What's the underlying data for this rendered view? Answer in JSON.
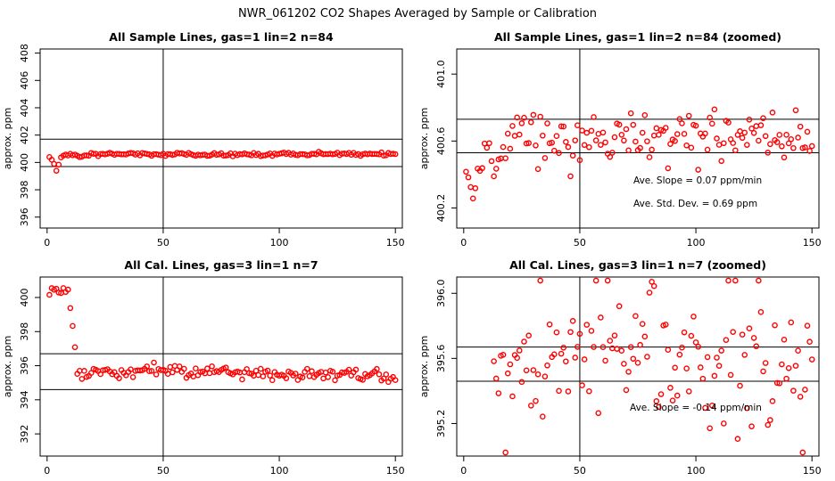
{
  "title": "NWR_061202  CO2 Shapes Averaged by Sample or Calibration",
  "colors": {
    "point": "#ff0000",
    "axis": "#000000"
  },
  "chart_data": [
    {
      "type": "scatter",
      "title": "All Sample Lines, gas=1 lin=2 n=84",
      "ylabel": "approx. ppm",
      "xlim": [
        -3,
        153
      ],
      "ylim": [
        395.2,
        408.3
      ],
      "xticks": [
        "0",
        "50",
        "100",
        "150"
      ],
      "yticks": [
        "396",
        "398",
        "400",
        "402",
        "404",
        "406",
        "408"
      ],
      "hlines": [
        401.7,
        399.7
      ],
      "vline": 50,
      "seed": 1,
      "series": [
        {
          "name": "gas1",
          "anchors": [
            [
              1,
              400.4
            ],
            [
              2,
              400.3
            ],
            [
              3,
              399.9
            ],
            [
              4,
              399.4
            ],
            [
              5,
              399.9
            ],
            [
              6,
              400.3
            ],
            [
              8,
              400.5
            ],
            [
              10,
              400.6
            ],
            [
              14,
              400.5
            ],
            [
              20,
              400.6
            ],
            [
              30,
              400.6
            ],
            [
              50,
              400.6
            ],
            [
              100,
              400.6
            ],
            [
              150,
              400.6
            ]
          ],
          "noise": 0.07
        }
      ],
      "annotations": []
    },
    {
      "type": "scatter",
      "title": "All Sample Lines, gas=1 lin=2 n=84 (zoomed)",
      "ylabel": "approx. ppm",
      "xlim": [
        -3,
        153
      ],
      "ylim": [
        400.08,
        401.15
      ],
      "xticks": [
        "0",
        "50",
        "100",
        "150"
      ],
      "yticks": [
        "400.2",
        "400.6",
        "401.0"
      ],
      "hlines": [
        400.73,
        400.53
      ],
      "vline": 50,
      "seed": 2,
      "series": [
        {
          "name": "gas1-zoom",
          "anchors": [
            [
              1,
              400.4
            ],
            [
              3,
              400.32
            ],
            [
              6,
              400.36
            ],
            [
              8,
              400.4
            ],
            [
              10,
              400.55
            ],
            [
              15,
              400.45
            ],
            [
              20,
              400.6
            ],
            [
              30,
              400.62
            ],
            [
              40,
              400.61
            ],
            [
              60,
              400.61
            ],
            [
              100,
              400.62
            ],
            [
              120,
              400.66
            ],
            [
              150,
              400.6
            ]
          ],
          "noise": 0.07
        }
      ],
      "annotations": [
        "Ave. Slope =  0.07  ppm/min",
        "Ave. Std. Dev. =  0.69  ppm"
      ]
    },
    {
      "type": "scatter",
      "title": "All Cal. Lines, gas=3 lin=1 n=7",
      "ylabel": "approx. ppm",
      "xlim": [
        -3,
        153
      ],
      "ylim": [
        390.7,
        401.2
      ],
      "xticks": [
        "0",
        "50",
        "100",
        "150"
      ],
      "yticks": [
        "392",
        "394",
        "396",
        "398",
        "400"
      ],
      "hlines": [
        396.7,
        394.6
      ],
      "vline": 50,
      "seed": 3,
      "series": [
        {
          "name": "gas3",
          "anchors": [
            [
              1,
              400.3
            ],
            [
              4,
              400.4
            ],
            [
              7,
              400.6
            ],
            [
              9,
              400.2
            ],
            [
              11,
              398.6
            ],
            [
              12,
              397.2
            ],
            [
              13,
              395.6
            ],
            [
              15,
              395.3
            ],
            [
              20,
              395.55
            ],
            [
              30,
              395.6
            ],
            [
              50,
              395.75
            ],
            [
              100,
              395.55
            ],
            [
              150,
              395.5
            ]
          ],
          "noise": 0.18
        }
      ],
      "annotations": []
    },
    {
      "type": "scatter",
      "title": "All Cal. Lines, gas=3 lin=1 n=7 (zoomed)",
      "ylabel": "approx. ppm",
      "xlim": [
        -3,
        153
      ],
      "ylim": [
        395.0,
        396.1
      ],
      "xticks": [
        "0",
        "50",
        "100",
        "150"
      ],
      "yticks": [
        "395.2",
        "395.6",
        "396.0"
      ],
      "hlines": [
        395.67,
        395.46
      ],
      "vline": 50,
      "seed": 4,
      "series": [
        {
          "name": "gas3-zoom",
          "anchors": [
            [
              13,
              395.5
            ],
            [
              20,
              395.55
            ],
            [
              30,
              395.6
            ],
            [
              50,
              395.7
            ],
            [
              100,
              395.55
            ],
            [
              150,
              395.5
            ]
          ],
          "noise": 0.24
        }
      ],
      "annotations": [
        "Ave. Slope = -0.14  ppm/min"
      ]
    }
  ]
}
